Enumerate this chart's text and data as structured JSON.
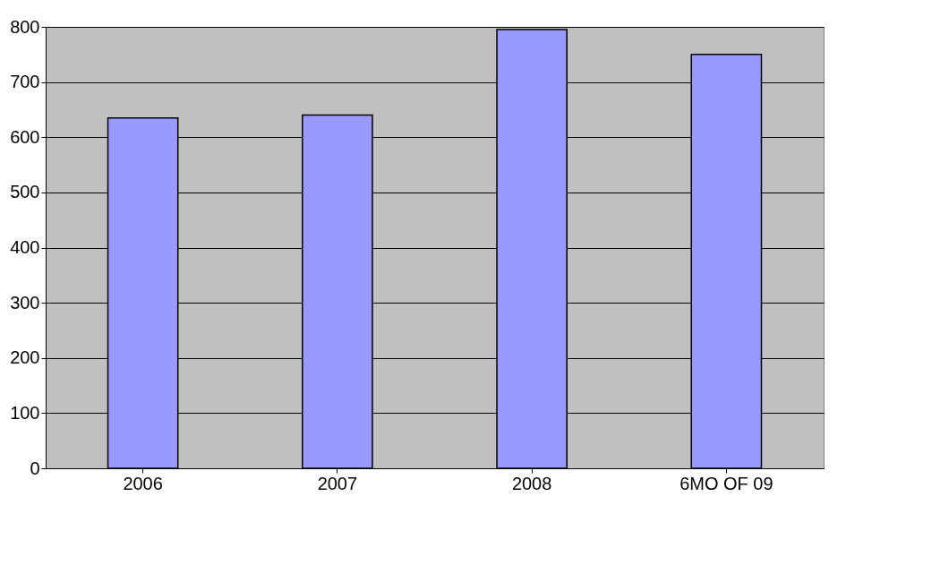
{
  "chart_data": {
    "type": "bar",
    "categories": [
      "2006",
      "2007",
      "2008",
      "6MO OF 09"
    ],
    "values": [
      635,
      640,
      795,
      750
    ],
    "color": "#9999ff",
    "ylim": [
      0,
      800
    ],
    "yticks": [
      0,
      100,
      200,
      300,
      400,
      500,
      600,
      700,
      800
    ],
    "grid": "y"
  }
}
